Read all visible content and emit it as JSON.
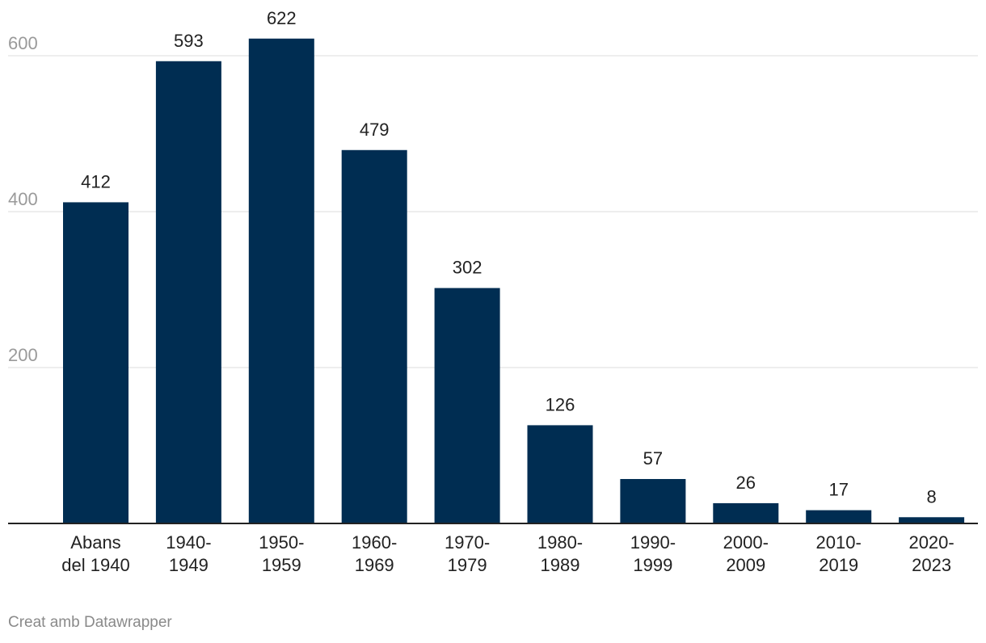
{
  "chart_data": {
    "type": "bar",
    "categories": [
      [
        "Abans",
        "del 1940"
      ],
      [
        "1940-",
        "1949"
      ],
      [
        "1950-",
        "1959"
      ],
      [
        "1960-",
        "1969"
      ],
      [
        "1970-",
        "1979"
      ],
      [
        "1980-",
        "1989"
      ],
      [
        "1990-",
        "1999"
      ],
      [
        "2000-",
        "2009"
      ],
      [
        "2010-",
        "2019"
      ],
      [
        "2020-",
        "2023"
      ]
    ],
    "values": [
      412,
      593,
      622,
      479,
      302,
      126,
      57,
      26,
      17,
      8
    ],
    "yticks": [
      200,
      400,
      600
    ],
    "ylim": [
      0,
      600
    ],
    "bar_color": "#002d52",
    "title": "",
    "xlabel": "",
    "ylabel": ""
  },
  "credit": "Creat amb Datawrapper"
}
